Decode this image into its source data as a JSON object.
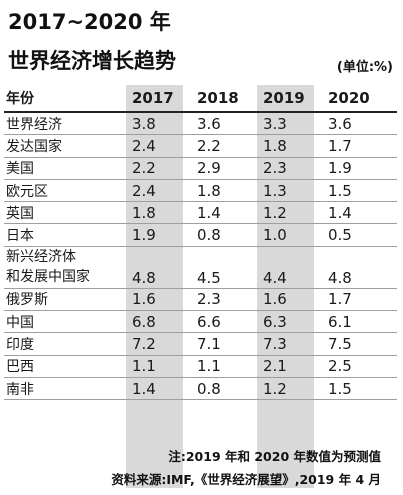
{
  "title_line1": "2017~2020 年",
  "title_line2": "世界经济增长趋势",
  "unit": "(单位:%)",
  "columns": [
    "年份",
    "2017",
    "2018",
    "2019",
    "2020"
  ],
  "rows": [
    {
      "name": "世界经济",
      "values": [
        "3.8",
        "3.6",
        "3.3",
        "3.6"
      ]
    },
    {
      "name": "发达国家",
      "values": [
        "2.4",
        "2.2",
        "1.8",
        "1.7"
      ]
    },
    {
      "name": "美国",
      "values": [
        "2.2",
        "2.9",
        "2.3",
        "1.9"
      ]
    },
    {
      "name": "欧元区",
      "values": [
        "2.4",
        "1.8",
        "1.3",
        "1.5"
      ]
    },
    {
      "name": "英国",
      "values": [
        "1.8",
        "1.4",
        "1.2",
        "1.4"
      ]
    },
    {
      "name": "日本",
      "values": [
        "1.9",
        "0.8",
        "1.0",
        "0.5"
      ]
    },
    {
      "name_line1": "新兴经济体",
      "name_line2": "和发展中国家",
      "values": [
        "4.8",
        "4.5",
        "4.4",
        "4.8"
      ]
    },
    {
      "name": "俄罗斯",
      "values": [
        "1.6",
        "2.3",
        "1.6",
        "1.7"
      ]
    },
    {
      "name": "中国",
      "values": [
        "6.8",
        "6.6",
        "6.3",
        "6.1"
      ]
    },
    {
      "name": "印度",
      "values": [
        "7.2",
        "7.1",
        "7.3",
        "7.5"
      ]
    },
    {
      "name": "巴西",
      "values": [
        "1.1",
        "1.1",
        "2.1",
        "2.5"
      ]
    },
    {
      "name": "南非",
      "values": [
        "1.4",
        "0.8",
        "1.2",
        "1.5"
      ]
    }
  ],
  "note": "注:2019 年和 2020 年数值为预测值",
  "source": "资料来源:IMF,《世界经济展望》,2019 年 4 月",
  "colors": {
    "band": "#d9d9d9",
    "rule": "#9e9e9e",
    "text": "#1a1a1a"
  }
}
